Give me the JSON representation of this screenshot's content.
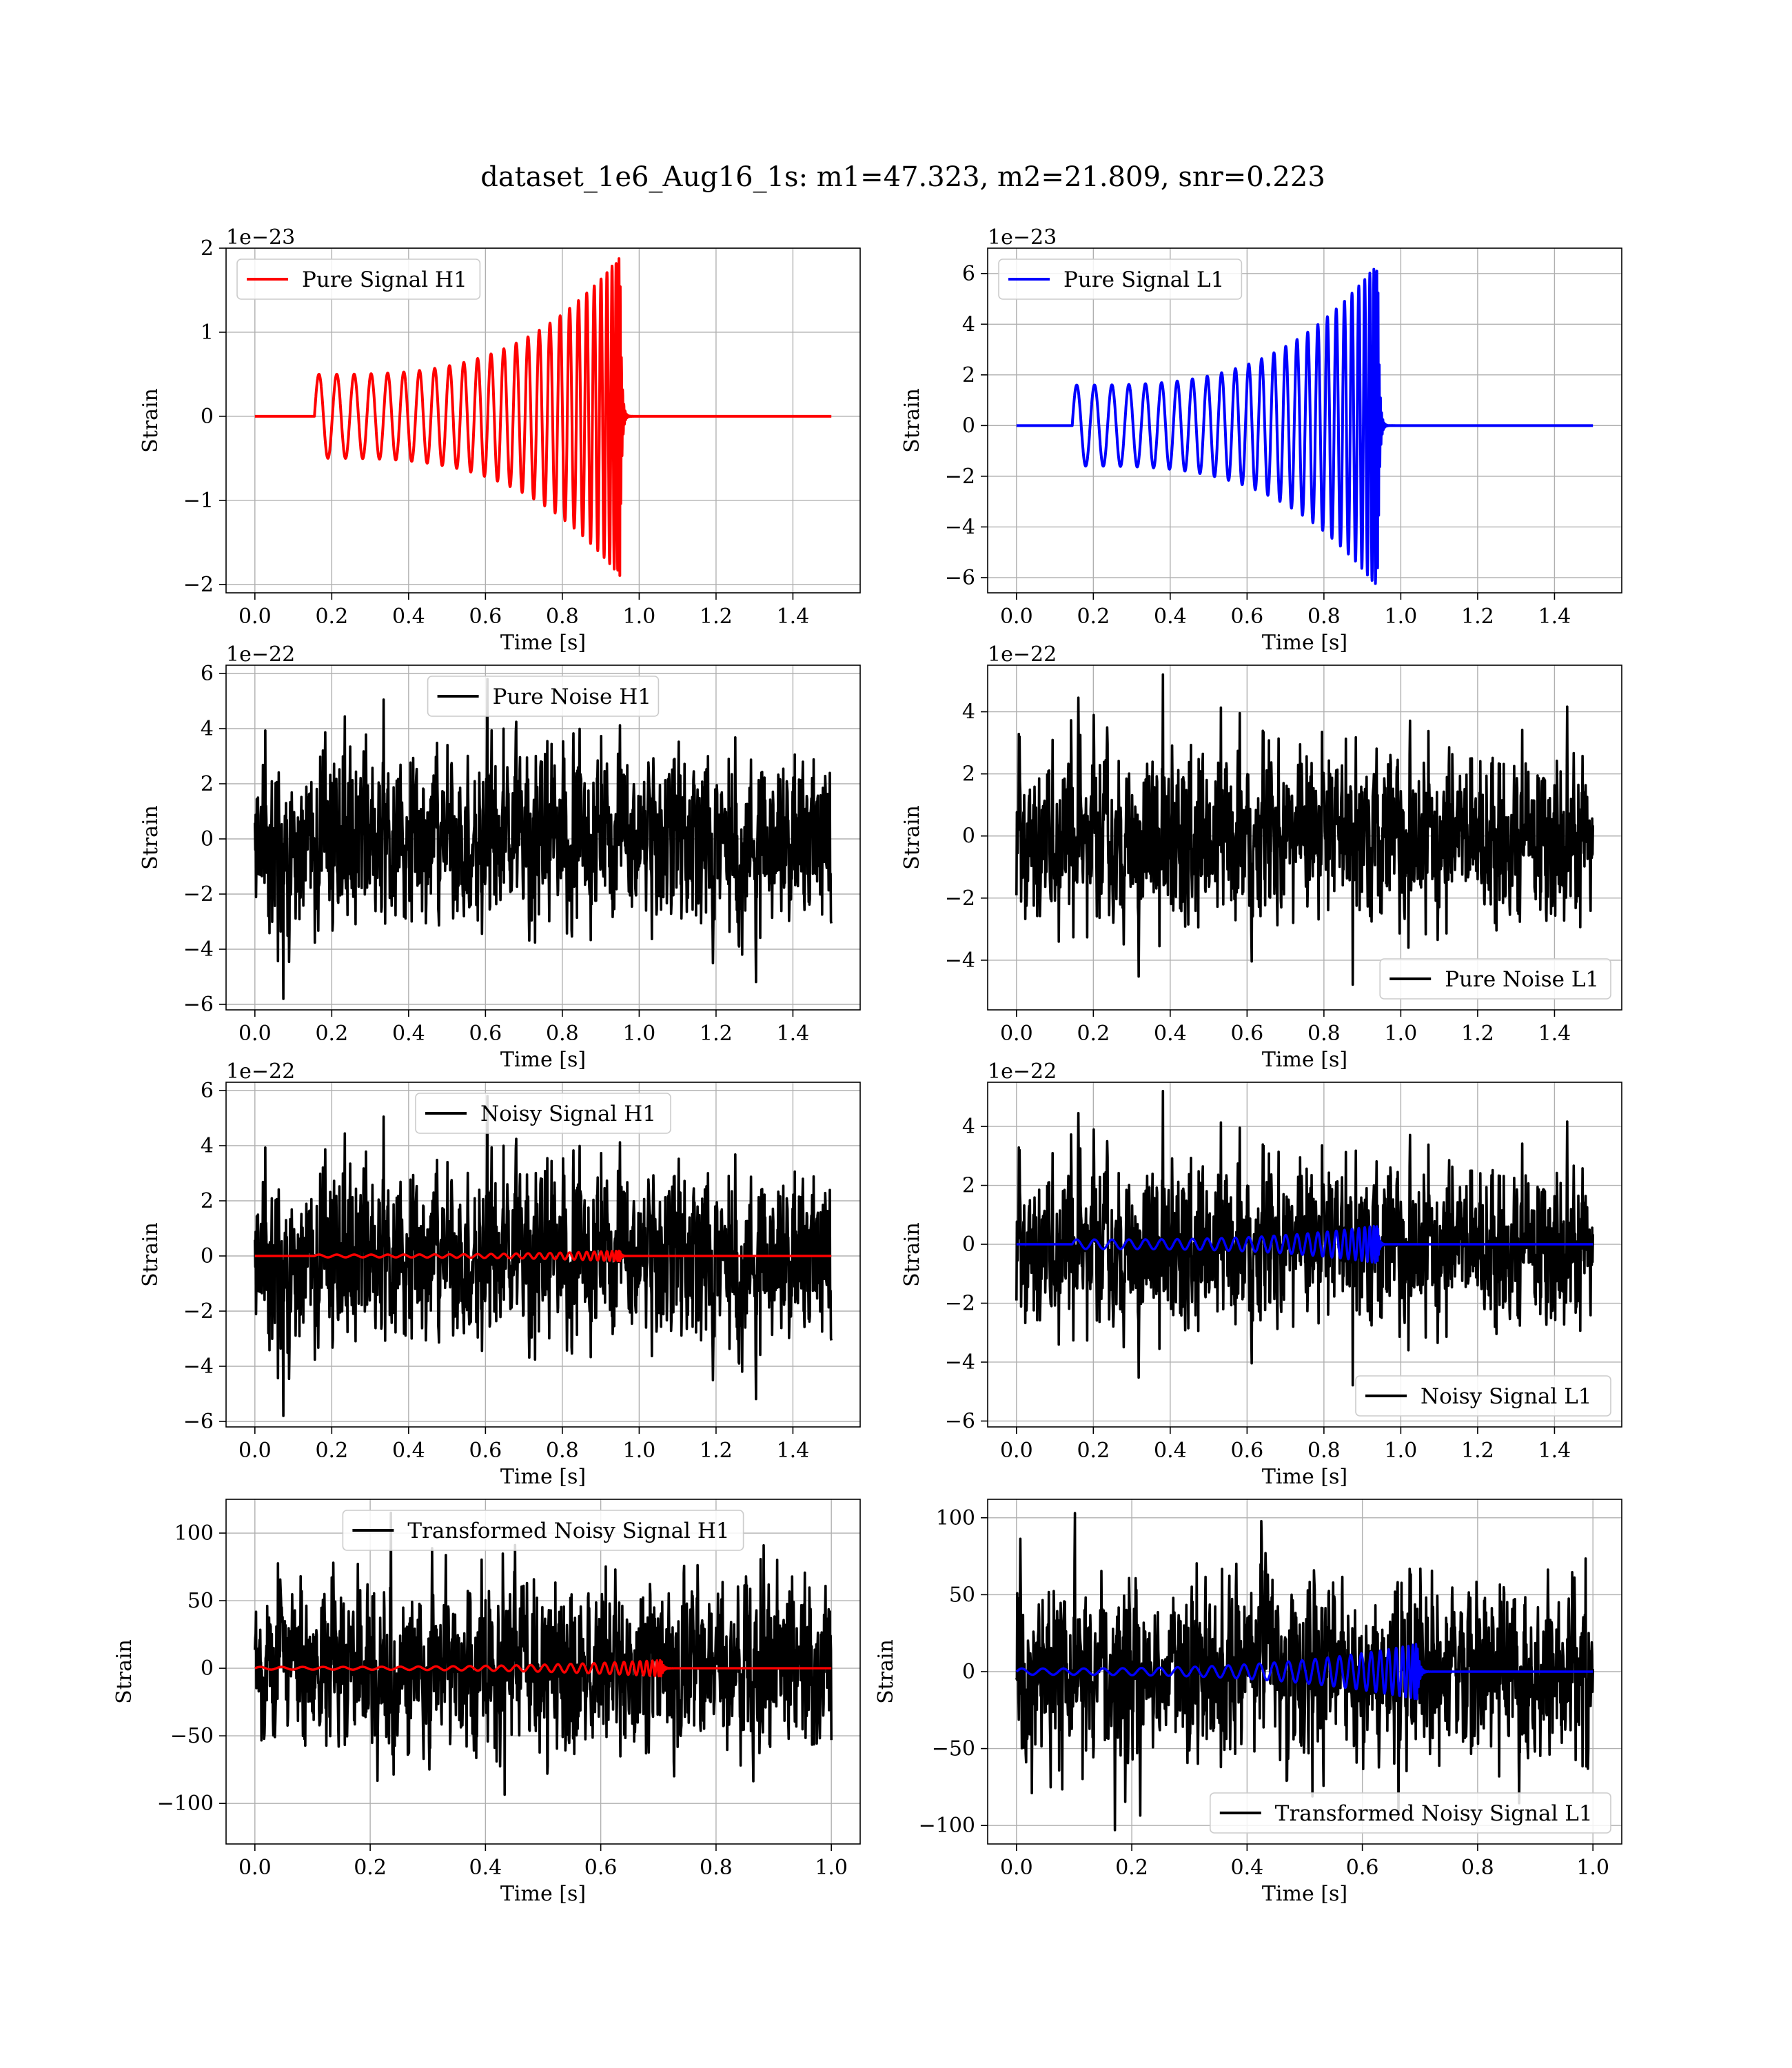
{
  "figure": {
    "title": "dataset_1e6_Aug16_1s: m1=47.323, m2=21.809, snr=0.223"
  },
  "chart_data": [
    {
      "type": "line",
      "legend": "Pure Signal H1",
      "legend_loc": "upper-left",
      "color": "#ff0000",
      "xlabel": "Time [s]",
      "ylabel": "Strain",
      "offset_text": "1e−23",
      "xlim": [
        -0.075,
        1.575
      ],
      "ylim": [
        -2.1,
        2.0
      ],
      "xticks": [
        0.0,
        0.2,
        0.4,
        0.6,
        0.8,
        1.0,
        1.2,
        1.4
      ],
      "xtick_labels": [
        "0.0",
        "0.2",
        "0.4",
        "0.6",
        "0.8",
        "1.0",
        "1.2",
        "1.4"
      ],
      "yticks": [
        -2,
        -1,
        0,
        1,
        2
      ],
      "ytick_labels": [
        "−2",
        "−1",
        "0",
        "1",
        "2"
      ],
      "grid": true,
      "series": [
        {
          "kind": "chirp",
          "color": "#ff0000",
          "t_start": 0.155,
          "t_merge": 0.95,
          "x_end": 1.5,
          "amp_start": 0.5,
          "amp_peak": 1.9,
          "cycles": 27
        }
      ]
    },
    {
      "type": "line",
      "legend": "Pure Signal L1",
      "legend_loc": "upper-left",
      "color": "#0000ff",
      "xlabel": "Time [s]",
      "ylabel": "Strain",
      "offset_text": "1e−23",
      "xlim": [
        -0.075,
        1.575
      ],
      "ylim": [
        -6.6,
        7.0
      ],
      "xticks": [
        0.0,
        0.2,
        0.4,
        0.6,
        0.8,
        1.0,
        1.2,
        1.4
      ],
      "xtick_labels": [
        "0.0",
        "0.2",
        "0.4",
        "0.6",
        "0.8",
        "1.0",
        "1.2",
        "1.4"
      ],
      "yticks": [
        -6,
        -4,
        -2,
        0,
        2,
        4,
        6
      ],
      "ytick_labels": [
        "−6",
        "−4",
        "−2",
        "0",
        "2",
        "4",
        "6"
      ],
      "grid": true,
      "series": [
        {
          "kind": "chirp",
          "color": "#0000ff",
          "t_start": 0.145,
          "t_merge": 0.94,
          "x_end": 1.5,
          "amp_start": 1.6,
          "amp_peak": 6.4,
          "cycles": 27
        }
      ]
    },
    {
      "type": "line",
      "legend": "Pure Noise H1",
      "legend_loc": "upper-center",
      "color": "#000000",
      "xlabel": "Time [s]",
      "ylabel": "Strain",
      "offset_text": "1e−22",
      "xlim": [
        -0.075,
        1.575
      ],
      "ylim": [
        -6.2,
        6.3
      ],
      "xticks": [
        0.0,
        0.2,
        0.4,
        0.6,
        0.8,
        1.0,
        1.2,
        1.4
      ],
      "xtick_labels": [
        "0.0",
        "0.2",
        "0.4",
        "0.6",
        "0.8",
        "1.0",
        "1.2",
        "1.4"
      ],
      "yticks": [
        -6,
        -4,
        -2,
        0,
        2,
        4,
        6
      ],
      "ytick_labels": [
        "−6",
        "−4",
        "−2",
        "0",
        "2",
        "4",
        "6"
      ],
      "grid": true,
      "series": [
        {
          "kind": "noise",
          "color": "#000000",
          "x_start": 0.0,
          "x_end": 1.5,
          "std": 1.5,
          "max_abs": 5.8,
          "seed": 11
        }
      ]
    },
    {
      "type": "line",
      "legend": "Pure Noise L1",
      "legend_loc": "lower-right",
      "color": "#000000",
      "xlabel": "Time [s]",
      "ylabel": "Strain",
      "offset_text": "1e−22",
      "xlim": [
        -0.075,
        1.575
      ],
      "ylim": [
        -5.6,
        5.5
      ],
      "xticks": [
        0.0,
        0.2,
        0.4,
        0.6,
        0.8,
        1.0,
        1.2,
        1.4
      ],
      "xtick_labels": [
        "0.0",
        "0.2",
        "0.4",
        "0.6",
        "0.8",
        "1.0",
        "1.2",
        "1.4"
      ],
      "yticks": [
        -4,
        -2,
        0,
        2,
        4
      ],
      "ytick_labels": [
        "−4",
        "−2",
        "0",
        "2",
        "4"
      ],
      "grid": true,
      "series": [
        {
          "kind": "noise",
          "color": "#000000",
          "x_start": 0.0,
          "x_end": 1.5,
          "std": 1.3,
          "max_abs": 5.2,
          "seed": 23
        }
      ]
    },
    {
      "type": "line",
      "legend": "Noisy Signal H1",
      "legend_loc": "upper-center",
      "color": "#000000",
      "xlabel": "Time [s]",
      "ylabel": "Strain",
      "offset_text": "1e−22",
      "xlim": [
        -0.075,
        1.575
      ],
      "ylim": [
        -6.2,
        6.3
      ],
      "xticks": [
        0.0,
        0.2,
        0.4,
        0.6,
        0.8,
        1.0,
        1.2,
        1.4
      ],
      "xtick_labels": [
        "0.0",
        "0.2",
        "0.4",
        "0.6",
        "0.8",
        "1.0",
        "1.2",
        "1.4"
      ],
      "yticks": [
        -6,
        -4,
        -2,
        0,
        2,
        4,
        6
      ],
      "ytick_labels": [
        "−6",
        "−4",
        "−2",
        "0",
        "2",
        "4",
        "6"
      ],
      "grid": true,
      "series": [
        {
          "kind": "noise",
          "color": "#000000",
          "x_start": 0.0,
          "x_end": 1.5,
          "std": 1.5,
          "max_abs": 5.8,
          "seed": 11
        },
        {
          "kind": "chirp",
          "color": "#ff0000",
          "t_start": 0.155,
          "t_merge": 0.95,
          "x_end": 1.5,
          "amp_start": 0.05,
          "amp_peak": 0.19,
          "cycles": 27
        }
      ]
    },
    {
      "type": "line",
      "legend": "Noisy Signal L1",
      "legend_loc": "lower-right",
      "color": "#000000",
      "xlabel": "Time [s]",
      "ylabel": "Strain",
      "offset_text": "1e−22",
      "xlim": [
        -0.075,
        1.575
      ],
      "ylim": [
        -6.2,
        5.5
      ],
      "xticks": [
        0.0,
        0.2,
        0.4,
        0.6,
        0.8,
        1.0,
        1.2,
        1.4
      ],
      "xtick_labels": [
        "0.0",
        "0.2",
        "0.4",
        "0.6",
        "0.8",
        "1.0",
        "1.2",
        "1.4"
      ],
      "yticks": [
        -6,
        -4,
        -2,
        0,
        2,
        4
      ],
      "ytick_labels": [
        "−6",
        "−4",
        "−2",
        "0",
        "2",
        "4"
      ],
      "grid": true,
      "series": [
        {
          "kind": "noise",
          "color": "#000000",
          "x_start": 0.0,
          "x_end": 1.5,
          "std": 1.3,
          "max_abs": 5.2,
          "seed": 23
        },
        {
          "kind": "chirp",
          "color": "#0000ff",
          "t_start": 0.145,
          "t_merge": 0.94,
          "x_end": 1.5,
          "amp_start": 0.16,
          "amp_peak": 0.64,
          "cycles": 27
        }
      ]
    },
    {
      "type": "line",
      "legend": "Transformed Noisy Signal H1",
      "legend_loc": "upper-center",
      "color": "#000000",
      "xlabel": "Time [s]",
      "ylabel": "Strain",
      "offset_text": "",
      "xlim": [
        -0.05,
        1.05
      ],
      "ylim": [
        -130,
        125
      ],
      "xticks": [
        0.0,
        0.2,
        0.4,
        0.6,
        0.8,
        1.0
      ],
      "xtick_labels": [
        "0.0",
        "0.2",
        "0.4",
        "0.6",
        "0.8",
        "1.0"
      ],
      "yticks": [
        -100,
        -50,
        0,
        50,
        100
      ],
      "ytick_labels": [
        "−100",
        "−50",
        "0",
        "50",
        "100"
      ],
      "grid": true,
      "series": [
        {
          "kind": "noise",
          "color": "#000000",
          "x_start": 0.0,
          "x_end": 1.0,
          "std": 30,
          "max_abs": 115,
          "seed": 37
        },
        {
          "kind": "chirp",
          "color": "#ff0000",
          "t_start": 0.0,
          "t_merge": 0.705,
          "x_end": 1.0,
          "amp_start": 1.0,
          "amp_peak": 6.0,
          "cycles": 30
        }
      ]
    },
    {
      "type": "line",
      "legend": "Transformed Noisy Signal L1",
      "legend_loc": "lower-right",
      "color": "#000000",
      "xlabel": "Time [s]",
      "ylabel": "Strain",
      "offset_text": "",
      "xlim": [
        -0.05,
        1.05
      ],
      "ylim": [
        -112,
        112
      ],
      "xticks": [
        0.0,
        0.2,
        0.4,
        0.6,
        0.8,
        1.0
      ],
      "xtick_labels": [
        "0.0",
        "0.2",
        "0.4",
        "0.6",
        "0.8",
        "1.0"
      ],
      "yticks": [
        -100,
        -50,
        0,
        50,
        100
      ],
      "ytick_labels": [
        "−100",
        "−50",
        "0",
        "50",
        "100"
      ],
      "grid": true,
      "series": [
        {
          "kind": "noise",
          "color": "#000000",
          "x_start": 0.0,
          "x_end": 1.0,
          "std": 28,
          "max_abs": 103,
          "seed": 53
        },
        {
          "kind": "chirp",
          "color": "#0000ff",
          "t_start": 0.0,
          "t_merge": 0.695,
          "x_end": 1.0,
          "amp_start": 2.0,
          "amp_peak": 18.0,
          "cycles": 30
        }
      ]
    }
  ]
}
